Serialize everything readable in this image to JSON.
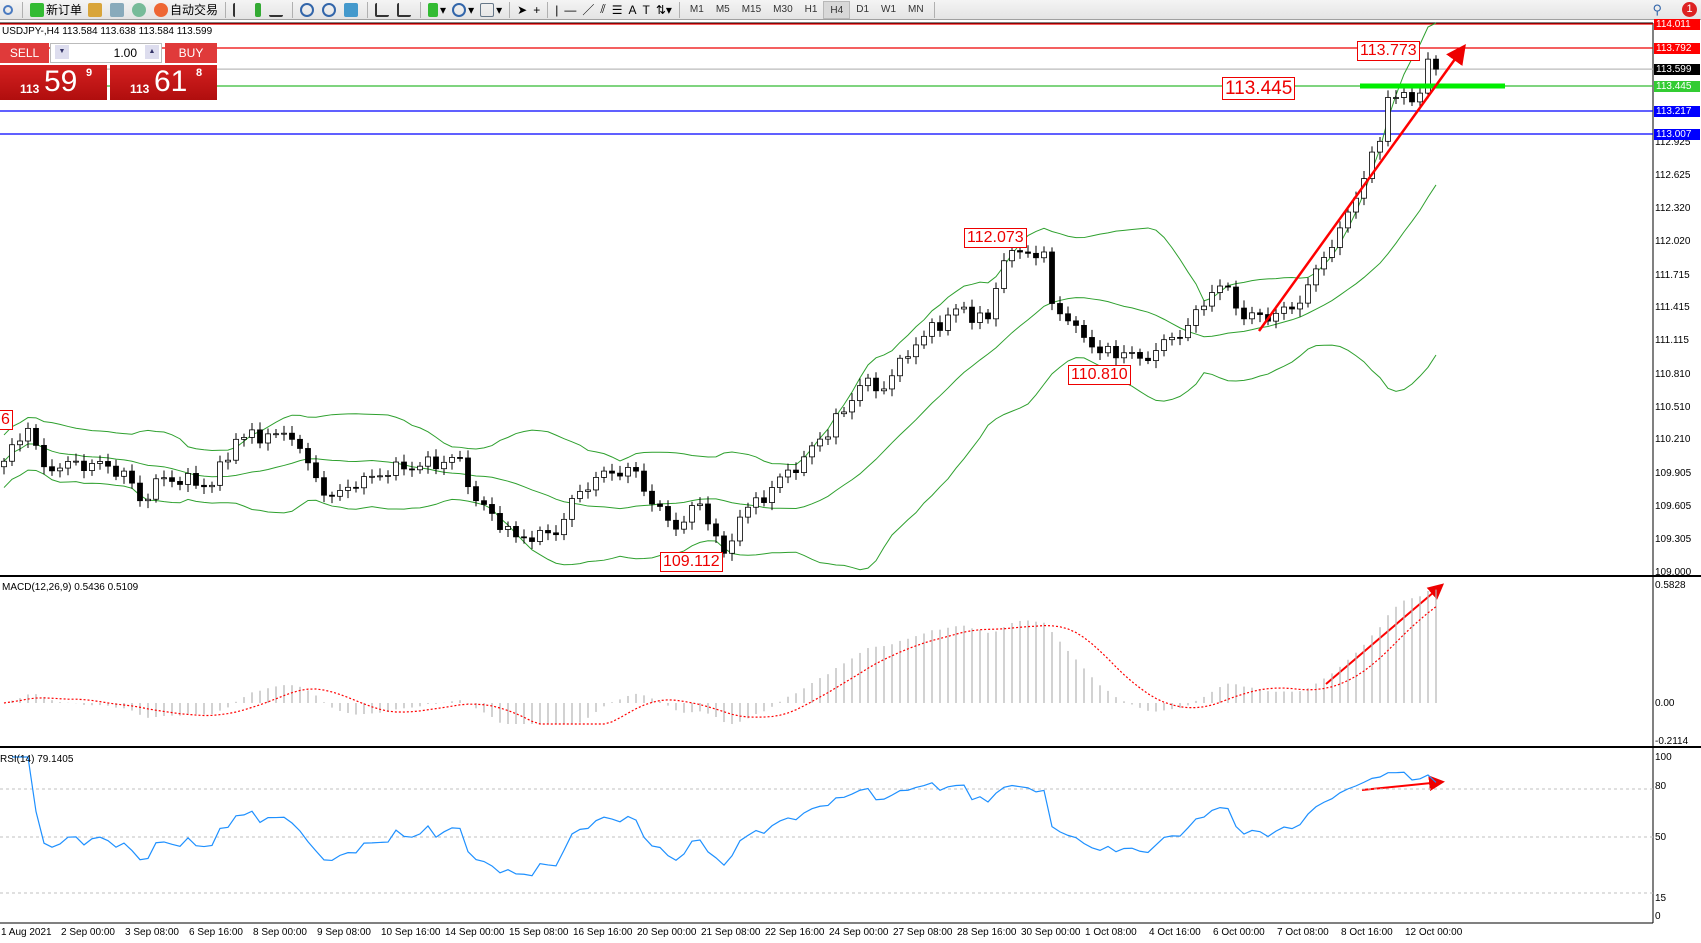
{
  "toolbar": {
    "new_order": "新订单",
    "auto_trading": "自动交易",
    "timeframes": [
      "M1",
      "M5",
      "M15",
      "M30",
      "H1",
      "H4",
      "D1",
      "W1",
      "MN"
    ],
    "selected_timeframe": "H4",
    "notification_count": "1"
  },
  "chart": {
    "symbol_line": "USDJPY-,H4  113.584 113.638 113.584 113.599"
  },
  "trade_panel": {
    "sell_label": "SELL",
    "buy_label": "BUY",
    "volume": "1.00",
    "sell_prefix": "113",
    "sell_big": "59",
    "sell_tail": "9",
    "buy_prefix": "113",
    "buy_big": "61",
    "buy_tail": "8"
  },
  "price_axis": [
    "112.925",
    "112.625",
    "112.320",
    "112.020",
    "111.715",
    "111.415",
    "111.115",
    "110.810",
    "110.510",
    "110.210",
    "109.905",
    "109.605",
    "109.305",
    "109.000"
  ],
  "level_tags": [
    {
      "value": "114.011",
      "color": "#ff0000"
    },
    {
      "value": "113.792",
      "color": "#ff0000"
    },
    {
      "value": "113.599",
      "color": "#000000"
    },
    {
      "value": "113.445",
      "color": "#33cc33"
    },
    {
      "value": "113.217",
      "color": "#0000ff"
    },
    {
      "value": "113.007",
      "color": "#0000ff"
    }
  ],
  "annotations": [
    "113.773",
    "113.445",
    "112.073",
    "110.810",
    "109.112",
    "6"
  ],
  "macd": {
    "label": "MACD(12,26,9) 0.5436 0.5109",
    "axis": [
      "0.5828",
      "0.00",
      "-0.2114"
    ]
  },
  "rsi": {
    "label": "RSI(14) 79.1405",
    "axis": [
      "100",
      "80",
      "50",
      "15",
      "0"
    ]
  },
  "time_axis": [
    "1 Aug 2021",
    "2 Sep 00:00",
    "3 Sep 08:00",
    "6 Sep 16:00",
    "8 Sep 00:00",
    "9 Sep 08:00",
    "10 Sep 16:00",
    "14 Sep 00:00",
    "15 Sep 08:00",
    "16 Sep 16:00",
    "20 Sep 00:00",
    "21 Sep 08:00",
    "22 Sep 16:00",
    "24 Sep 00:00",
    "27 Sep 08:00",
    "28 Sep 16:00",
    "30 Sep 00:00",
    "1 Oct 08:00",
    "4 Oct 16:00",
    "6 Oct 00:00",
    "7 Oct 08:00",
    "8 Oct 16:00",
    "12 Oct 00:00"
  ],
  "chart_data": {
    "type": "candlestick",
    "symbol": "USDJPY",
    "timeframe": "H4",
    "ylim": [
      109.0,
      114.011
    ],
    "close_keypoints_bar_price": [
      [
        0,
        110.02
      ],
      [
        3,
        110.32
      ],
      [
        5,
        109.97
      ],
      [
        11,
        110.0
      ],
      [
        15,
        109.93
      ],
      [
        17,
        109.66
      ],
      [
        20,
        109.87
      ],
      [
        26,
        109.8
      ],
      [
        29,
        110.22
      ],
      [
        33,
        110.27
      ],
      [
        36,
        110.22
      ],
      [
        39,
        109.87
      ],
      [
        41,
        109.7
      ],
      [
        45,
        109.88
      ],
      [
        50,
        109.95
      ],
      [
        57,
        110.05
      ],
      [
        59,
        109.66
      ],
      [
        64,
        109.33
      ],
      [
        69,
        109.35
      ],
      [
        71,
        109.68
      ],
      [
        75,
        109.93
      ],
      [
        79,
        109.93
      ],
      [
        81,
        109.63
      ],
      [
        84,
        109.4
      ],
      [
        87,
        109.63
      ],
      [
        90,
        109.18
      ],
      [
        92,
        109.51
      ],
      [
        96,
        109.78
      ],
      [
        100,
        110.06
      ],
      [
        105,
        110.47
      ],
      [
        107,
        110.71
      ],
      [
        110,
        110.68
      ],
      [
        112,
        110.96
      ],
      [
        115,
        111.16
      ],
      [
        119,
        111.41
      ],
      [
        123,
        111.32
      ],
      [
        125,
        111.85
      ],
      [
        127,
        111.93
      ],
      [
        130,
        111.93
      ],
      [
        131,
        111.46
      ],
      [
        134,
        111.26
      ],
      [
        137,
        111.01
      ],
      [
        140,
        111.01
      ],
      [
        142,
        110.96
      ],
      [
        144,
        111.03
      ],
      [
        148,
        111.26
      ],
      [
        151,
        111.56
      ],
      [
        153,
        111.61
      ],
      [
        155,
        111.32
      ],
      [
        159,
        111.37
      ],
      [
        161,
        111.41
      ],
      [
        163,
        111.63
      ],
      [
        165,
        111.88
      ],
      [
        167,
        112.15
      ],
      [
        170,
        112.6
      ],
      [
        172,
        112.94
      ],
      [
        173,
        113.34
      ],
      [
        174,
        113.34
      ],
      [
        176,
        113.3
      ],
      [
        177,
        113.38
      ],
      [
        178,
        113.69
      ],
      [
        179,
        113.599
      ]
    ],
    "bollinger": {
      "period": 20,
      "deviations": 2
    },
    "macd_params": [
      12,
      26,
      9
    ],
    "rsi_period": 14,
    "colors": {
      "bands": "#2ea02e",
      "signal": "#ff0000",
      "histogram": "#b4b4b4",
      "rsi": "#1e90ff",
      "arrows": "#ff0000"
    }
  }
}
